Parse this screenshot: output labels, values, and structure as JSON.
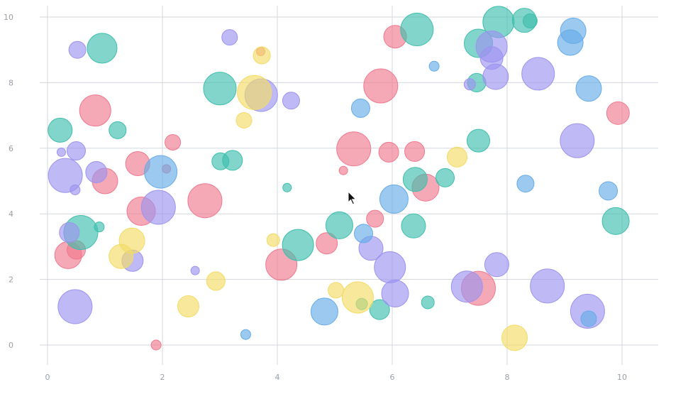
{
  "colors": {
    "red": "#f07a8f",
    "green": "#3fbfad",
    "purple": "#9d93ef",
    "blue": "#66ace8",
    "yellow": "#f2dc66",
    "grid": "#d3d7de",
    "tick_text": "#9aa0a8"
  },
  "chart_data": {
    "type": "scatter",
    "subtype": "bubble",
    "title": "",
    "xlabel": "",
    "ylabel": "",
    "xlim": [
      -0.15,
      10.6
    ],
    "ylim": [
      -0.2,
      10.25
    ],
    "x_ticks": [
      0,
      2,
      4,
      6,
      8,
      10
    ],
    "y_ticks": [
      0,
      2,
      4,
      6,
      8,
      10
    ],
    "grid": true,
    "legend": "none",
    "series": [
      {
        "color": "red",
        "points": [
          {
            "x": 0.83,
            "y": 7.15,
            "r": 22
          },
          {
            "x": 1.0,
            "y": 5.0,
            "r": 18
          },
          {
            "x": 1.57,
            "y": 5.53,
            "r": 17
          },
          {
            "x": 1.63,
            "y": 4.08,
            "r": 20
          },
          {
            "x": 0.36,
            "y": 2.74,
            "r": 19
          },
          {
            "x": 0.5,
            "y": 2.9,
            "r": 13
          },
          {
            "x": 2.18,
            "y": 6.18,
            "r": 11
          },
          {
            "x": 2.07,
            "y": 5.37,
            "r": 6
          },
          {
            "x": 2.74,
            "y": 4.4,
            "r": 24
          },
          {
            "x": 1.89,
            "y": 0.0,
            "r": 7
          },
          {
            "x": 4.07,
            "y": 2.45,
            "r": 22
          },
          {
            "x": 4.86,
            "y": 3.1,
            "r": 15
          },
          {
            "x": 3.71,
            "y": 8.95,
            "r": 6
          },
          {
            "x": 5.33,
            "y": 5.98,
            "r": 24
          },
          {
            "x": 5.15,
            "y": 5.32,
            "r": 6
          },
          {
            "x": 5.8,
            "y": 7.9,
            "r": 24
          },
          {
            "x": 5.94,
            "y": 5.88,
            "r": 14
          },
          {
            "x": 5.7,
            "y": 3.85,
            "r": 12
          },
          {
            "x": 6.05,
            "y": 9.4,
            "r": 16
          },
          {
            "x": 6.39,
            "y": 5.9,
            "r": 14
          },
          {
            "x": 6.58,
            "y": 4.8,
            "r": 19
          },
          {
            "x": 7.5,
            "y": 1.73,
            "r": 24
          },
          {
            "x": 9.93,
            "y": 7.07,
            "r": 16
          }
        ]
      },
      {
        "color": "green",
        "points": [
          {
            "x": 0.95,
            "y": 9.05,
            "r": 21
          },
          {
            "x": 0.22,
            "y": 6.55,
            "r": 17
          },
          {
            "x": 1.22,
            "y": 6.55,
            "r": 12
          },
          {
            "x": 0.58,
            "y": 3.43,
            "r": 24
          },
          {
            "x": 0.9,
            "y": 3.6,
            "r": 7
          },
          {
            "x": 3.0,
            "y": 7.82,
            "r": 23
          },
          {
            "x": 3.01,
            "y": 5.6,
            "r": 12
          },
          {
            "x": 3.22,
            "y": 5.63,
            "r": 14
          },
          {
            "x": 4.17,
            "y": 4.8,
            "r": 6
          },
          {
            "x": 4.36,
            "y": 3.05,
            "r": 22
          },
          {
            "x": 5.08,
            "y": 3.65,
            "r": 19
          },
          {
            "x": 5.47,
            "y": 1.25,
            "r": 8
          },
          {
            "x": 5.78,
            "y": 1.08,
            "r": 14
          },
          {
            "x": 6.43,
            "y": 9.62,
            "r": 23
          },
          {
            "x": 6.4,
            "y": 5.05,
            "r": 17
          },
          {
            "x": 6.37,
            "y": 3.63,
            "r": 17
          },
          {
            "x": 6.62,
            "y": 1.3,
            "r": 9
          },
          {
            "x": 6.92,
            "y": 5.1,
            "r": 13
          },
          {
            "x": 7.5,
            "y": 9.2,
            "r": 20
          },
          {
            "x": 7.47,
            "y": 8.0,
            "r": 13
          },
          {
            "x": 7.5,
            "y": 6.23,
            "r": 16
          },
          {
            "x": 7.85,
            "y": 9.85,
            "r": 22
          },
          {
            "x": 8.3,
            "y": 9.9,
            "r": 17
          },
          {
            "x": 8.4,
            "y": 9.88,
            "r": 10
          },
          {
            "x": 9.89,
            "y": 3.78,
            "r": 19
          }
        ]
      },
      {
        "color": "purple",
        "points": [
          {
            "x": 0.52,
            "y": 9.0,
            "r": 12
          },
          {
            "x": 0.5,
            "y": 5.92,
            "r": 13
          },
          {
            "x": 0.24,
            "y": 5.88,
            "r": 6
          },
          {
            "x": 0.31,
            "y": 5.17,
            "r": 24
          },
          {
            "x": 0.48,
            "y": 4.73,
            "r": 7
          },
          {
            "x": 0.85,
            "y": 5.27,
            "r": 15
          },
          {
            "x": 1.93,
            "y": 4.2,
            "r": 24
          },
          {
            "x": 0.38,
            "y": 3.43,
            "r": 14
          },
          {
            "x": 1.48,
            "y": 2.57,
            "r": 15
          },
          {
            "x": 0.48,
            "y": 1.17,
            "r": 24
          },
          {
            "x": 2.57,
            "y": 2.27,
            "r": 6
          },
          {
            "x": 3.17,
            "y": 9.38,
            "r": 11
          },
          {
            "x": 3.72,
            "y": 7.62,
            "r": 23
          },
          {
            "x": 4.24,
            "y": 7.45,
            "r": 12
          },
          {
            "x": 5.63,
            "y": 2.95,
            "r": 17
          },
          {
            "x": 5.96,
            "y": 2.37,
            "r": 22
          },
          {
            "x": 6.05,
            "y": 1.57,
            "r": 19
          },
          {
            "x": 7.3,
            "y": 1.78,
            "r": 22
          },
          {
            "x": 7.35,
            "y": 7.95,
            "r": 8
          },
          {
            "x": 7.73,
            "y": 9.1,
            "r": 22
          },
          {
            "x": 7.73,
            "y": 8.75,
            "r": 16
          },
          {
            "x": 7.8,
            "y": 8.18,
            "r": 18
          },
          {
            "x": 7.82,
            "y": 2.45,
            "r": 17
          },
          {
            "x": 8.54,
            "y": 8.27,
            "r": 23
          },
          {
            "x": 8.7,
            "y": 1.8,
            "r": 24
          },
          {
            "x": 9.22,
            "y": 6.23,
            "r": 24
          },
          {
            "x": 9.4,
            "y": 1.03,
            "r": 24
          }
        ]
      },
      {
        "color": "blue",
        "points": [
          {
            "x": 1.97,
            "y": 5.28,
            "r": 23
          },
          {
            "x": 3.45,
            "y": 0.32,
            "r": 7
          },
          {
            "x": 4.82,
            "y": 1.02,
            "r": 19
          },
          {
            "x": 5.45,
            "y": 7.22,
            "r": 13
          },
          {
            "x": 5.5,
            "y": 3.4,
            "r": 13
          },
          {
            "x": 6.03,
            "y": 4.45,
            "r": 20
          },
          {
            "x": 6.73,
            "y": 8.5,
            "r": 7
          },
          {
            "x": 8.32,
            "y": 4.92,
            "r": 12
          },
          {
            "x": 9.1,
            "y": 9.22,
            "r": 18
          },
          {
            "x": 9.15,
            "y": 9.58,
            "r": 18
          },
          {
            "x": 9.42,
            "y": 7.82,
            "r": 18
          },
          {
            "x": 9.76,
            "y": 4.7,
            "r": 13
          },
          {
            "x": 9.42,
            "y": 0.8,
            "r": 11
          }
        ]
      },
      {
        "color": "yellow",
        "points": [
          {
            "x": 3.73,
            "y": 8.83,
            "r": 12
          },
          {
            "x": 3.6,
            "y": 7.7,
            "r": 24
          },
          {
            "x": 3.42,
            "y": 6.85,
            "r": 11
          },
          {
            "x": 1.47,
            "y": 3.18,
            "r": 18
          },
          {
            "x": 1.28,
            "y": 2.7,
            "r": 17
          },
          {
            "x": 2.45,
            "y": 1.18,
            "r": 15
          },
          {
            "x": 2.93,
            "y": 1.95,
            "r": 13
          },
          {
            "x": 3.93,
            "y": 3.2,
            "r": 9
          },
          {
            "x": 5.02,
            "y": 1.67,
            "r": 11
          },
          {
            "x": 5.4,
            "y": 1.45,
            "r": 22
          },
          {
            "x": 7.13,
            "y": 5.73,
            "r": 14
          },
          {
            "x": 8.13,
            "y": 0.22,
            "r": 18
          }
        ]
      }
    ]
  }
}
